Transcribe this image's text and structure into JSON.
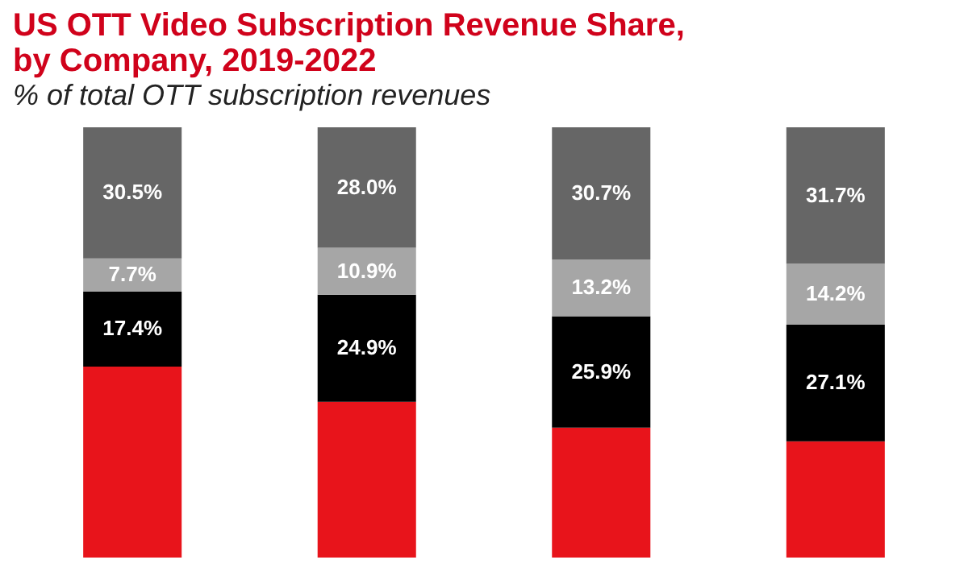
{
  "chart_data": {
    "type": "bar",
    "title": [
      "US OTT Video Subscription Revenue Share,",
      "by Company, 2019-2022"
    ],
    "subtitle": "% of total OTT subscription revenues",
    "categories": [
      null,
      null,
      null,
      null
    ],
    "stacked": true,
    "tick_labels": false,
    "legend": false,
    "series": [
      {
        "color": "#e8141b",
        "values": [
          44.4,
          36.2,
          30.2,
          27.0
        ],
        "value_labels": [
          null,
          null,
          null,
          null
        ]
      },
      {
        "color": "#000000",
        "values": [
          17.4,
          24.9,
          25.9,
          27.1
        ],
        "value_labels": [
          "17.4%",
          "24.9%",
          "25.9%",
          "27.1%"
        ]
      },
      {
        "color": "#a6a6a6",
        "values": [
          7.7,
          10.9,
          13.2,
          14.2
        ],
        "value_labels": [
          "7.7%",
          "10.9%",
          "13.2%",
          "14.2%"
        ]
      },
      {
        "color": "#666666",
        "values": [
          30.5,
          28.0,
          30.7,
          31.7
        ],
        "value_labels": [
          "30.5%",
          "28.0%",
          "30.7%",
          "31.7%"
        ]
      }
    ]
  }
}
